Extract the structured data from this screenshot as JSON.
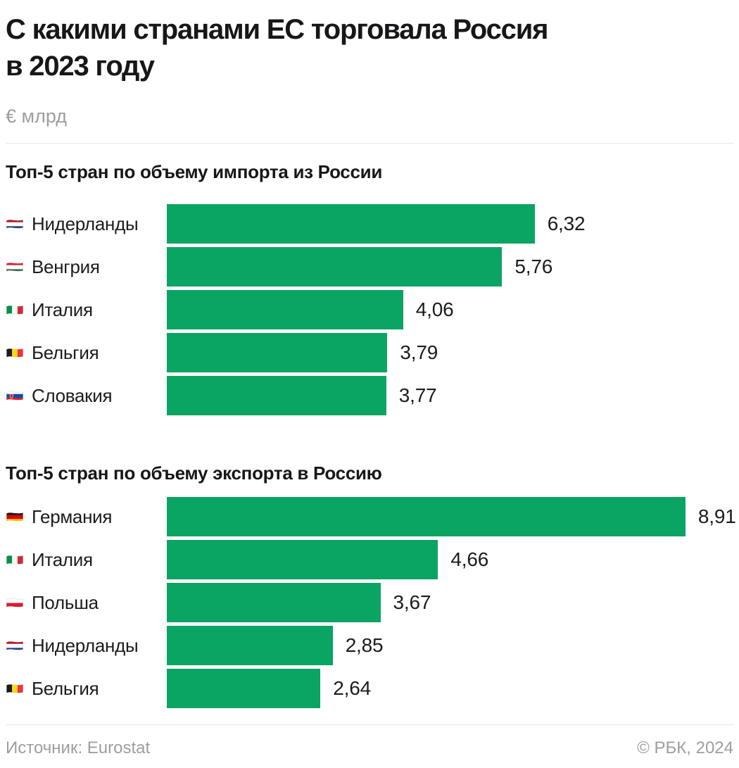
{
  "title_lines": [
    "С какими странами ЕС торговала Россия",
    "в 2023 году"
  ],
  "unit_label": "€ млрд",
  "footer": {
    "source": "Источник: Eurostat",
    "copyright": "© РБК, 2024"
  },
  "colors": {
    "bar": "#0aa463",
    "text_dark": "#17171a",
    "text_muted": "#9e9ea0",
    "divider": "#e7e7e7"
  },
  "chart_data": [
    {
      "type": "bar",
      "orientation": "horizontal",
      "title": "Топ-5 стран по объему импорта из России",
      "unit": "€ млрд",
      "xlim": [
        0,
        9
      ],
      "grid": false,
      "categories": [
        "Нидерланды",
        "Венгрия",
        "Италия",
        "Бельгия",
        "Словакия"
      ],
      "values": [
        6.32,
        5.76,
        4.06,
        3.79,
        3.77
      ],
      "value_labels": [
        "6,32",
        "5,76",
        "4,06",
        "3,79",
        "3,77"
      ],
      "flags": [
        {
          "name": "flag-netherlands",
          "dir": "h",
          "stripes": [
            "#AE1C28",
            "#FFFFFF",
            "#21468B"
          ]
        },
        {
          "name": "flag-hungary",
          "dir": "h",
          "stripes": [
            "#CE2939",
            "#FFFFFF",
            "#477050"
          ]
        },
        {
          "name": "flag-italy",
          "dir": "v",
          "stripes": [
            "#009246",
            "#FFFFFF",
            "#CE2B37"
          ]
        },
        {
          "name": "flag-belgium",
          "dir": "v",
          "stripes": [
            "#1A1A1A",
            "#FFD90C",
            "#EF3340"
          ]
        },
        {
          "name": "flag-slovakia",
          "dir": "h",
          "stripes": [
            "#FFFFFF",
            "#0B4EA2",
            "#EE1C25"
          ],
          "emblem": "#EE1C25"
        }
      ]
    },
    {
      "type": "bar",
      "orientation": "horizontal",
      "title": "Топ-5 стран по объему экспорта в Россию",
      "unit": "€ млрд",
      "xlim": [
        0,
        9
      ],
      "grid": false,
      "categories": [
        "Германия",
        "Италия",
        "Польша",
        "Нидерланды",
        "Бельгия"
      ],
      "values": [
        8.91,
        4.66,
        3.67,
        2.85,
        2.64
      ],
      "value_labels": [
        "8,91",
        "4,66",
        "3,67",
        "2,85",
        "2,64"
      ],
      "flags": [
        {
          "name": "flag-germany",
          "dir": "h",
          "stripes": [
            "#1A1A1A",
            "#DD0000",
            "#FFCE00"
          ]
        },
        {
          "name": "flag-italy",
          "dir": "v",
          "stripes": [
            "#009246",
            "#FFFFFF",
            "#CE2B37"
          ]
        },
        {
          "name": "flag-poland",
          "dir": "h",
          "stripes": [
            "#FFFFFF",
            "#DC1C2E"
          ]
        },
        {
          "name": "flag-netherlands",
          "dir": "h",
          "stripes": [
            "#AE1C28",
            "#FFFFFF",
            "#21468B"
          ]
        },
        {
          "name": "flag-belgium",
          "dir": "v",
          "stripes": [
            "#1A1A1A",
            "#FFD90C",
            "#EF3340"
          ]
        }
      ]
    }
  ]
}
